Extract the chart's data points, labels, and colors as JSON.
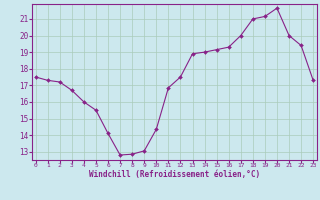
{
  "x": [
    0,
    1,
    2,
    3,
    4,
    5,
    6,
    7,
    8,
    9,
    10,
    11,
    12,
    13,
    14,
    15,
    16,
    17,
    18,
    19,
    20,
    21,
    22,
    23
  ],
  "y": [
    17.5,
    17.3,
    17.2,
    16.7,
    16.0,
    15.5,
    14.1,
    12.8,
    12.85,
    13.05,
    14.35,
    16.85,
    17.5,
    18.9,
    19.0,
    19.15,
    19.3,
    20.0,
    21.0,
    21.15,
    21.65,
    20.0,
    19.4,
    17.3
  ],
  "xlabel": "Windchill (Refroidissement éolien,°C)",
  "ylim": [
    12.5,
    21.9
  ],
  "yticks": [
    13,
    14,
    15,
    16,
    17,
    18,
    19,
    20,
    21
  ],
  "xticks": [
    0,
    1,
    2,
    3,
    4,
    5,
    6,
    7,
    8,
    9,
    10,
    11,
    12,
    13,
    14,
    15,
    16,
    17,
    18,
    19,
    20,
    21,
    22,
    23
  ],
  "line_color": "#882288",
  "marker": "D",
  "marker_size": 2.0,
  "bg_color": "#cce8ee",
  "grid_color": "#aaccbb",
  "xlabel_color": "#882288",
  "tick_color": "#882288",
  "font_family": "monospace",
  "spine_color": "#882288"
}
